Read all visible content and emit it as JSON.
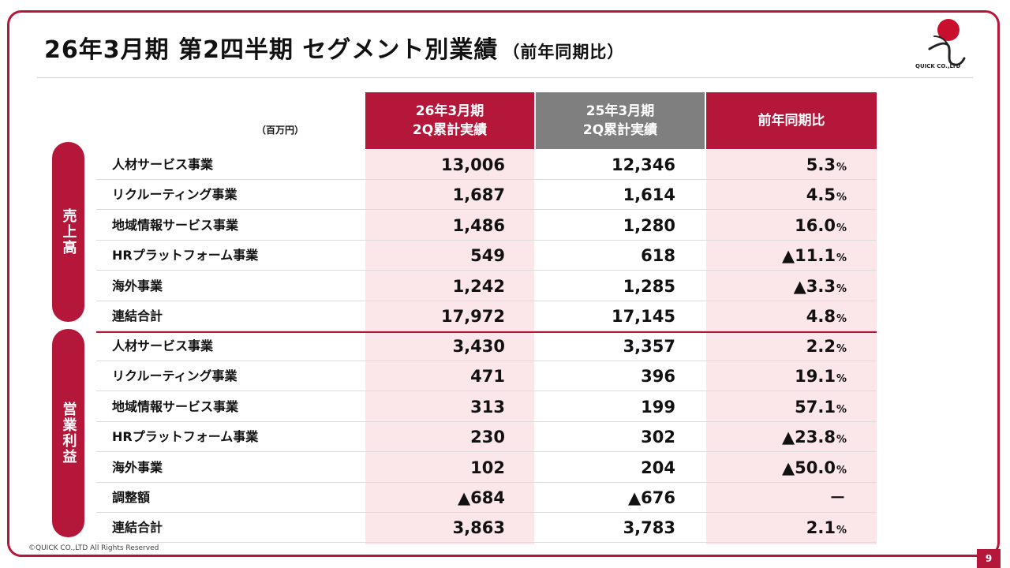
{
  "slide": {
    "title": "26年3月期 第2四半期 セグメント別業績",
    "title_sub": "（前年同期比）",
    "logo_text": "QUICK CO.,LTD",
    "unit": "（百万円）",
    "copyright": "©QUICK CO.,LTD All Rights Reserved",
    "page_number": "9"
  },
  "colors": {
    "accent": "#b5173a",
    "grey_header": "#7f7f7f",
    "pink_fill": "#fbe7ea"
  },
  "table": {
    "headers": [
      {
        "line1": "26年3月期",
        "line2": "2Q累計実績"
      },
      {
        "line1": "25年3月期",
        "line2": "2Q累計実績"
      },
      {
        "line1": "前年同期比",
        "line2": ""
      }
    ],
    "sections": [
      {
        "label": "売上高",
        "rows": [
          {
            "name": "人材サービス事業",
            "cur": "13,006",
            "prev": "12,346",
            "yoy": "5.3",
            "unit": "%"
          },
          {
            "name": "リクルーティング事業",
            "cur": "1,687",
            "prev": "1,614",
            "yoy": "4.5",
            "unit": "%"
          },
          {
            "name": "地域情報サービス事業",
            "cur": "1,486",
            "prev": "1,280",
            "yoy": "16.0",
            "unit": "%"
          },
          {
            "name": "HRプラットフォーム事業",
            "cur": "549",
            "prev": "618",
            "yoy": "▲11.1",
            "unit": "%"
          },
          {
            "name": "海外事業",
            "cur": "1,242",
            "prev": "1,285",
            "yoy": "▲3.3",
            "unit": "%"
          },
          {
            "name": "連結合計",
            "cur": "17,972",
            "prev": "17,145",
            "yoy": "4.8",
            "unit": "%"
          }
        ]
      },
      {
        "label": "営業利益",
        "rows": [
          {
            "name": "人材サービス事業",
            "cur": "3,430",
            "prev": "3,357",
            "yoy": "2.2",
            "unit": "%"
          },
          {
            "name": "リクルーティング事業",
            "cur": "471",
            "prev": "396",
            "yoy": "19.1",
            "unit": "%"
          },
          {
            "name": "地域情報サービス事業",
            "cur": "313",
            "prev": "199",
            "yoy": "57.1",
            "unit": "%"
          },
          {
            "name": "HRプラットフォーム事業",
            "cur": "230",
            "prev": "302",
            "yoy": "▲23.8",
            "unit": "%"
          },
          {
            "name": "海外事業",
            "cur": "102",
            "prev": "204",
            "yoy": "▲50.0",
            "unit": "%"
          },
          {
            "name": "調整額",
            "cur": "▲684",
            "prev": "▲676",
            "yoy": "－",
            "unit": ""
          },
          {
            "name": "連結合計",
            "cur": "3,863",
            "prev": "3,783",
            "yoy": "2.1",
            "unit": "%"
          }
        ]
      }
    ]
  }
}
